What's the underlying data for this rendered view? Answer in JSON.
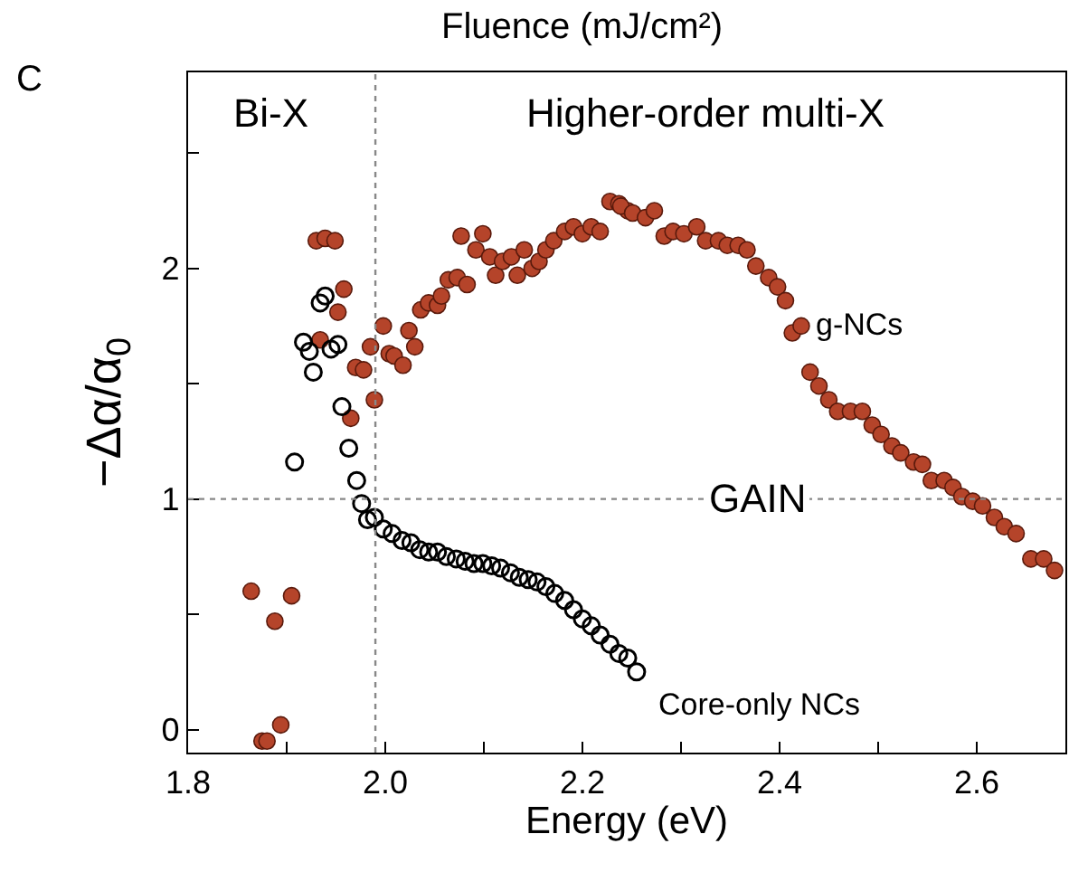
{
  "chart_data": {
    "type": "scatter",
    "xlabel": "Energy (eV)",
    "ylabel": "−Δα/α$_{0}$",
    "xlim": [
      1.8,
      2.69
    ],
    "ylim": [
      -0.1,
      2.85
    ],
    "xticks": [
      1.8,
      {
        "value": 1.9,
        "label": null
      },
      {
        "value": 2.0,
        "label": "2.0"
      },
      {
        "value": 2.1,
        "label": null
      },
      2.2,
      {
        "value": 2.3,
        "label": null
      },
      2.4,
      {
        "value": 2.5,
        "label": null
      },
      2.6
    ],
    "yticks": [
      0,
      {
        "value": 0.5,
        "label": null
      },
      1,
      {
        "value": 1.5,
        "label": null
      },
      2,
      {
        "value": 2.5,
        "label": null
      }
    ],
    "legend": false,
    "series": [
      {
        "name": "g-NCs",
        "color": "#b5442a",
        "marker": "circle",
        "x": [
          1.864,
          1.905,
          1.888,
          1.894,
          1.875,
          1.88,
          1.93,
          1.939,
          1.949,
          1.958,
          1.952,
          1.934,
          1.97,
          1.978,
          1.965,
          1.989,
          1.985,
          1.998,
          2.004,
          2.009,
          2.018,
          2.024,
          2.03,
          2.036,
          2.044,
          2.053,
          2.057,
          2.064,
          2.073,
          2.083,
          2.077,
          2.099,
          2.092,
          2.106,
          2.112,
          2.119,
          2.128,
          2.134,
          2.141,
          2.149,
          2.156,
          2.163,
          2.171,
          2.182,
          2.191,
          2.2,
          2.209,
          2.218,
          2.228,
          2.237,
          2.246,
          2.239,
          2.251,
          2.264,
          2.273,
          2.283,
          2.292,
          2.303,
          2.316,
          2.325,
          2.338,
          2.347,
          2.358,
          2.367,
          2.376,
          2.389,
          2.398,
          2.406,
          2.413,
          2.422,
          2.431,
          2.44,
          2.45,
          2.459,
          2.472,
          2.484,
          2.494,
          2.503,
          2.514,
          2.523,
          2.536,
          2.545,
          2.554,
          2.567,
          2.576,
          2.585,
          2.596,
          2.606,
          2.618,
          2.628,
          2.64,
          2.655,
          2.668,
          2.679
        ],
        "values": [
          0.6,
          0.58,
          0.47,
          0.02,
          -0.05,
          -0.05,
          2.12,
          2.13,
          2.12,
          1.91,
          1.81,
          1.69,
          1.57,
          1.56,
          1.35,
          1.43,
          1.66,
          1.75,
          1.63,
          1.62,
          1.58,
          1.73,
          1.66,
          1.82,
          1.85,
          1.84,
          1.88,
          1.95,
          1.96,
          1.93,
          2.14,
          2.15,
          2.08,
          2.05,
          1.97,
          2.03,
          2.05,
          1.97,
          2.08,
          2.0,
          2.03,
          2.08,
          2.12,
          2.16,
          2.18,
          2.15,
          2.18,
          2.16,
          2.29,
          2.28,
          2.25,
          2.27,
          2.24,
          2.22,
          2.25,
          2.14,
          2.16,
          2.15,
          2.18,
          2.12,
          2.12,
          2.1,
          2.1,
          2.08,
          2.01,
          1.96,
          1.92,
          1.86,
          1.72,
          1.75,
          1.55,
          1.49,
          1.43,
          1.38,
          1.38,
          1.38,
          1.32,
          1.28,
          1.23,
          1.2,
          1.16,
          1.15,
          1.08,
          1.08,
          1.05,
          1.01,
          0.99,
          0.97,
          0.92,
          0.88,
          0.85,
          0.74,
          0.74,
          0.69
        ]
      },
      {
        "name": "Core-only NCs",
        "color": "#000000",
        "marker": "circle-open",
        "x": [
          1.908,
          1.927,
          1.917,
          1.923,
          1.934,
          1.939,
          1.945,
          1.952,
          1.956,
          1.963,
          1.971,
          1.976,
          1.982,
          1.989,
          1.998,
          2.007,
          2.017,
          2.026,
          2.035,
          2.044,
          2.053,
          2.062,
          2.072,
          2.081,
          2.09,
          2.099,
          2.108,
          2.117,
          2.127,
          2.136,
          2.145,
          2.154,
          2.163,
          2.172,
          2.182,
          2.191,
          2.2,
          2.209,
          2.218,
          2.228,
          2.237,
          2.246,
          2.255
        ],
        "values": [
          1.16,
          1.55,
          1.68,
          1.64,
          1.85,
          1.88,
          1.65,
          1.67,
          1.4,
          1.22,
          1.08,
          0.98,
          0.91,
          0.92,
          0.87,
          0.85,
          0.82,
          0.81,
          0.78,
          0.77,
          0.77,
          0.75,
          0.74,
          0.73,
          0.72,
          0.72,
          0.71,
          0.7,
          0.68,
          0.66,
          0.65,
          0.64,
          0.62,
          0.59,
          0.56,
          0.52,
          0.48,
          0.45,
          0.41,
          0.37,
          0.33,
          0.31,
          0.25
        ]
      }
    ],
    "ref_lines": [
      {
        "axis": "x",
        "value": 1.99,
        "color": "#888888",
        "line_style": "dotted"
      },
      {
        "axis": "y",
        "value": 1,
        "label": "GAIN",
        "color": "#888888",
        "line_style": "dotted"
      }
    ],
    "annotations": [
      "C",
      "Fluence (mJ/cm²)",
      "Bi-X",
      "Higher-order multi-X"
    ]
  }
}
